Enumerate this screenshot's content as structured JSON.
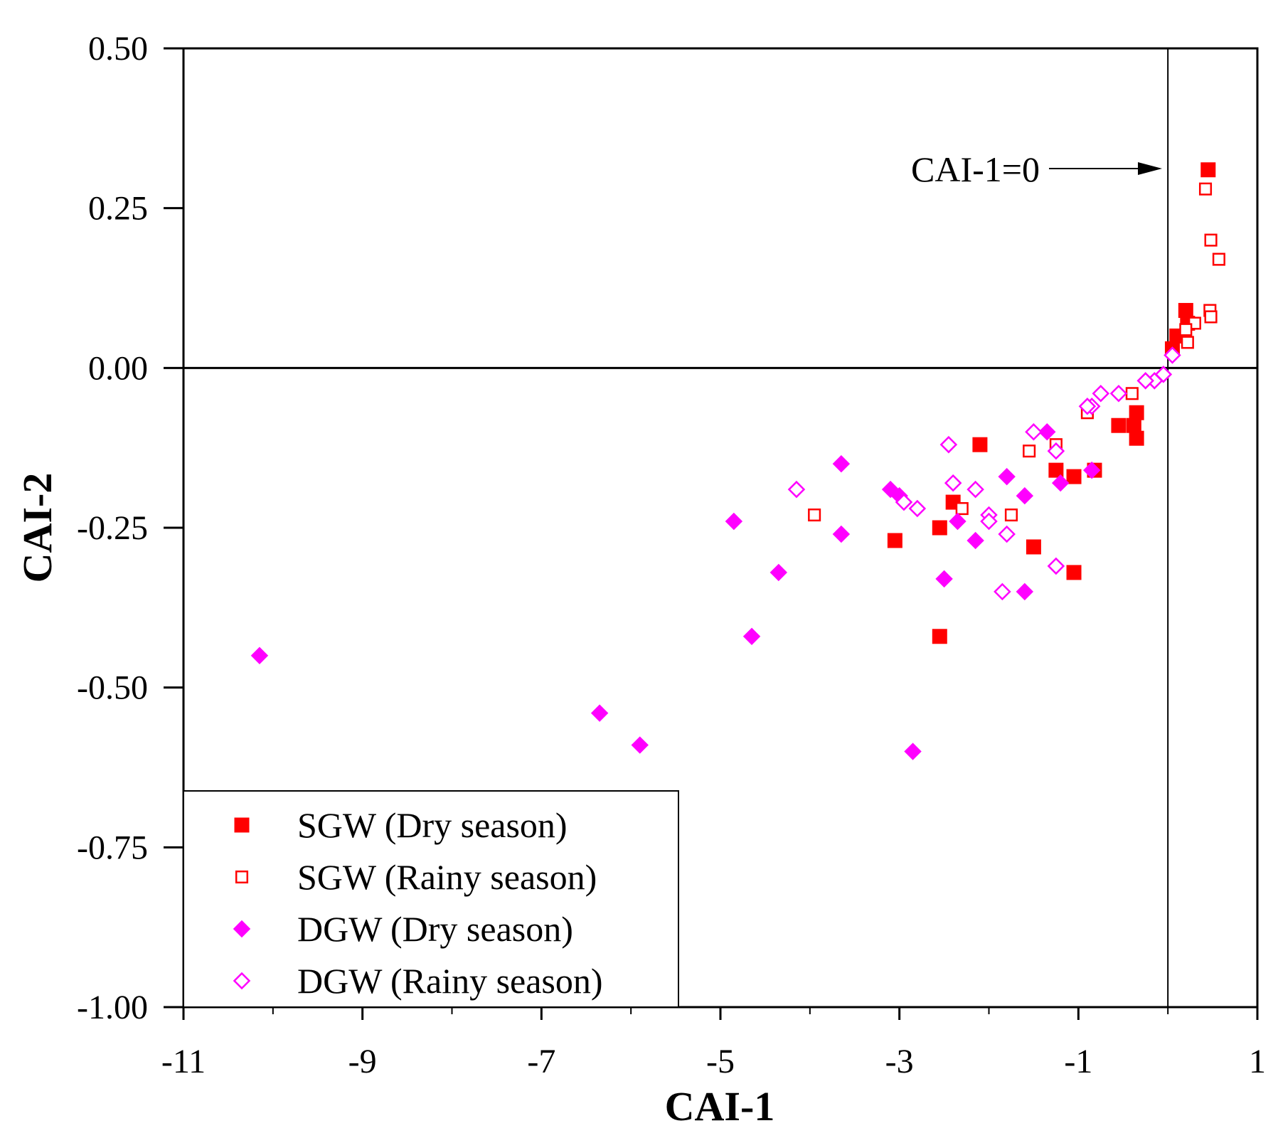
{
  "chart_data": {
    "type": "scatter",
    "title": "",
    "xlabel": "CAI-1",
    "ylabel": "CAI-2",
    "xlim": [
      -11,
      1
    ],
    "ylim": [
      -1.0,
      0.5
    ],
    "x_ticks": [
      -11,
      -9,
      -7,
      -5,
      -3,
      -1,
      1
    ],
    "x_tick_labels": [
      "-11",
      "-9",
      "-7",
      "-5",
      "-3",
      "-1",
      "1"
    ],
    "y_ticks": [
      0.5,
      0.25,
      0.0,
      -0.25,
      -0.5,
      -0.75,
      -1.0
    ],
    "y_tick_labels": [
      "0.50",
      "0.25",
      "0.00",
      "-0.25",
      "-0.50",
      "-0.75",
      "-1.00"
    ],
    "grid": false,
    "legend_position": "bottom-left",
    "reference_lines": {
      "x": 0,
      "y": 0
    },
    "annotation": {
      "text": "CAI-1=0",
      "points_to_x": 0,
      "at_y": 0.31
    },
    "colors": {
      "sgw": "#ff0000",
      "dgw": "#ff00ff"
    },
    "series": [
      {
        "name": "SGW (Dry season)",
        "marker": "square-filled",
        "color": "#ff0000",
        "points": [
          [
            0.45,
            0.31
          ],
          [
            0.2,
            0.09
          ],
          [
            0.22,
            0.07
          ],
          [
            0.1,
            0.05
          ],
          [
            0.05,
            0.03
          ],
          [
            -0.35,
            -0.07
          ],
          [
            -0.38,
            -0.09
          ],
          [
            -0.35,
            -0.11
          ],
          [
            -0.55,
            -0.09
          ],
          [
            -0.82,
            -0.16
          ],
          [
            -1.05,
            -0.17
          ],
          [
            -1.25,
            -0.16
          ],
          [
            -2.1,
            -0.12
          ],
          [
            -2.4,
            -0.21
          ],
          [
            -2.55,
            -0.25
          ],
          [
            -1.5,
            -0.28
          ],
          [
            -3.05,
            -0.27
          ],
          [
            -1.05,
            -0.32
          ],
          [
            -2.55,
            -0.42
          ]
        ]
      },
      {
        "name": "SGW (Rainy season)",
        "marker": "square-open",
        "color": "#ff0000",
        "points": [
          [
            0.42,
            0.28
          ],
          [
            0.48,
            0.2
          ],
          [
            0.57,
            0.17
          ],
          [
            0.47,
            0.09
          ],
          [
            0.48,
            0.08
          ],
          [
            0.3,
            0.07
          ],
          [
            0.2,
            0.06
          ],
          [
            0.22,
            0.04
          ],
          [
            -0.4,
            -0.04
          ],
          [
            -0.9,
            -0.07
          ],
          [
            -1.25,
            -0.12
          ],
          [
            -1.55,
            -0.13
          ],
          [
            -2.3,
            -0.22
          ],
          [
            -1.75,
            -0.23
          ],
          [
            -3.95,
            -0.23
          ]
        ]
      },
      {
        "name": "DGW (Dry season)",
        "marker": "diamond-filled",
        "color": "#ff00ff",
        "points": [
          [
            -1.35,
            -0.1
          ],
          [
            -0.85,
            -0.16
          ],
          [
            -1.2,
            -0.18
          ],
          [
            -1.8,
            -0.17
          ],
          [
            -1.6,
            -0.2
          ],
          [
            -3.65,
            -0.15
          ],
          [
            -3.1,
            -0.19
          ],
          [
            -3.0,
            -0.2
          ],
          [
            -2.35,
            -0.24
          ],
          [
            -2.15,
            -0.27
          ],
          [
            -3.65,
            -0.26
          ],
          [
            -4.85,
            -0.24
          ],
          [
            -4.35,
            -0.32
          ],
          [
            -2.5,
            -0.33
          ],
          [
            -1.6,
            -0.35
          ],
          [
            -4.65,
            -0.42
          ],
          [
            -10.15,
            -0.45
          ],
          [
            -6.35,
            -0.54
          ],
          [
            -5.9,
            -0.59
          ],
          [
            -2.85,
            -0.6
          ]
        ]
      },
      {
        "name": "DGW (Rainy season)",
        "marker": "diamond-open",
        "color": "#ff00ff",
        "points": [
          [
            0.05,
            0.02
          ],
          [
            -0.05,
            -0.01
          ],
          [
            -0.15,
            -0.02
          ],
          [
            -0.25,
            -0.02
          ],
          [
            -0.55,
            -0.04
          ],
          [
            -0.75,
            -0.04
          ],
          [
            -0.85,
            -0.06
          ],
          [
            -0.9,
            -0.06
          ],
          [
            -1.5,
            -0.1
          ],
          [
            -1.25,
            -0.13
          ],
          [
            -2.45,
            -0.12
          ],
          [
            -2.4,
            -0.18
          ],
          [
            -2.15,
            -0.19
          ],
          [
            -4.15,
            -0.19
          ],
          [
            -2.95,
            -0.21
          ],
          [
            -2.8,
            -0.22
          ],
          [
            -2.0,
            -0.23
          ],
          [
            -2.0,
            -0.24
          ],
          [
            -1.8,
            -0.26
          ],
          [
            -1.25,
            -0.31
          ],
          [
            -1.85,
            -0.35
          ]
        ]
      }
    ]
  }
}
